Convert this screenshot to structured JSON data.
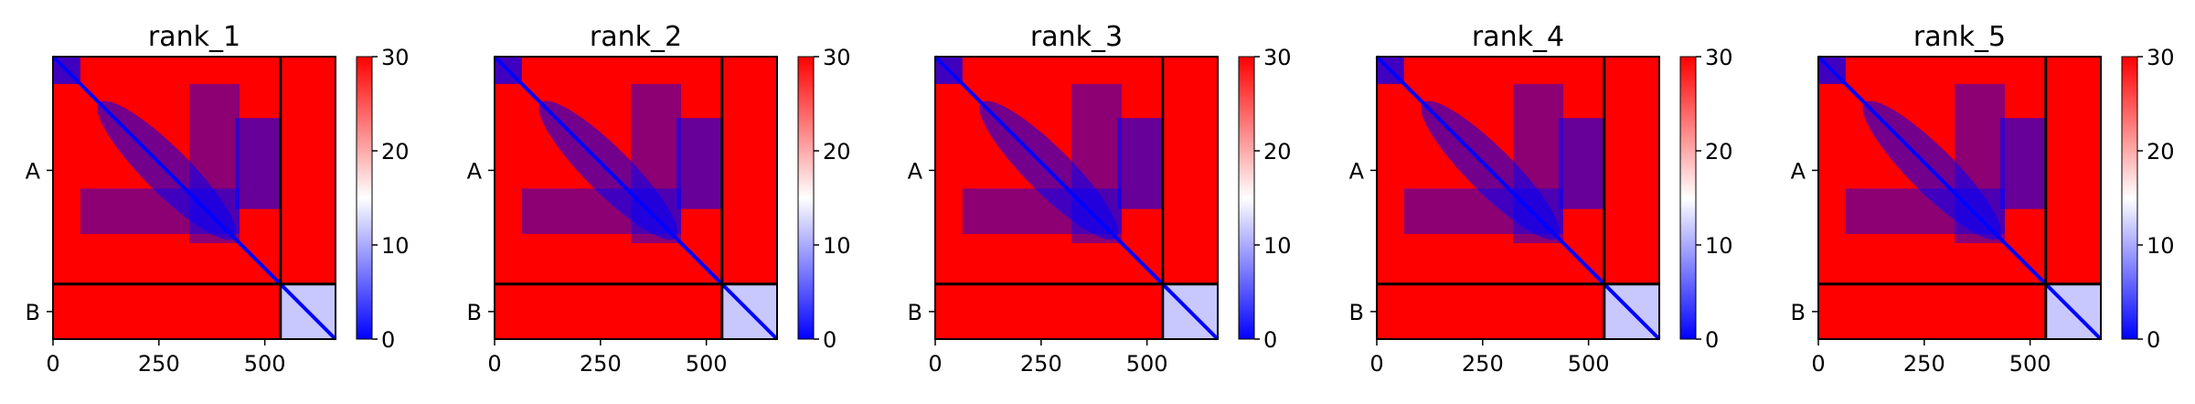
{
  "colors": {
    "low": "#0000ff",
    "mid": "#ffffff",
    "high": "#ff0000",
    "divider": "#000000"
  },
  "chart_data": [
    {
      "type": "heatmap",
      "title": "rank_1",
      "xlabel": "",
      "ylabel": "",
      "xlim": [
        0,
        667
      ],
      "x_ticks": [
        0,
        250,
        500
      ],
      "chains": [
        {
          "label": "A",
          "start": 0,
          "end": 537
        },
        {
          "label": "B",
          "start": 537,
          "end": 667
        }
      ],
      "chain_boundary": 537,
      "colorbar": {
        "min": 0,
        "max": 30,
        "ticks": [
          0,
          10,
          20,
          30
        ],
        "colormap": "bwr"
      },
      "grid": false
    },
    {
      "type": "heatmap",
      "title": "rank_2",
      "xlabel": "",
      "ylabel": "",
      "xlim": [
        0,
        667
      ],
      "x_ticks": [
        0,
        250,
        500
      ],
      "chains": [
        {
          "label": "A",
          "start": 0,
          "end": 537
        },
        {
          "label": "B",
          "start": 537,
          "end": 667
        }
      ],
      "chain_boundary": 537,
      "colorbar": {
        "min": 0,
        "max": 30,
        "ticks": [
          0,
          10,
          20,
          30
        ],
        "colormap": "bwr"
      },
      "grid": false
    },
    {
      "type": "heatmap",
      "title": "rank_3",
      "xlabel": "",
      "ylabel": "",
      "xlim": [
        0,
        667
      ],
      "x_ticks": [
        0,
        250,
        500
      ],
      "chains": [
        {
          "label": "A",
          "start": 0,
          "end": 537
        },
        {
          "label": "B",
          "start": 537,
          "end": 667
        }
      ],
      "chain_boundary": 537,
      "colorbar": {
        "min": 0,
        "max": 30,
        "ticks": [
          0,
          10,
          20,
          30
        ],
        "colormap": "bwr"
      },
      "grid": false
    },
    {
      "type": "heatmap",
      "title": "rank_4",
      "xlabel": "",
      "ylabel": "",
      "xlim": [
        0,
        667
      ],
      "x_ticks": [
        0,
        250,
        500
      ],
      "chains": [
        {
          "label": "A",
          "start": 0,
          "end": 537
        },
        {
          "label": "B",
          "start": 537,
          "end": 667
        }
      ],
      "chain_boundary": 537,
      "colorbar": {
        "min": 0,
        "max": 30,
        "ticks": [
          0,
          10,
          20,
          30
        ],
        "colormap": "bwr"
      },
      "grid": false
    },
    {
      "type": "heatmap",
      "title": "rank_5",
      "xlabel": "",
      "ylabel": "",
      "xlim": [
        0,
        667
      ],
      "x_ticks": [
        0,
        250,
        500
      ],
      "chains": [
        {
          "label": "A",
          "start": 0,
          "end": 537
        },
        {
          "label": "B",
          "start": 537,
          "end": 667
        }
      ],
      "chain_boundary": 537,
      "colorbar": {
        "min": 0,
        "max": 30,
        "ticks": [
          0,
          10,
          20,
          30
        ],
        "colormap": "bwr"
      },
      "grid": false
    }
  ]
}
